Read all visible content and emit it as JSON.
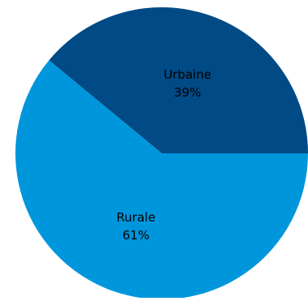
{
  "chart_data": {
    "type": "pie",
    "title": "",
    "categories": [
      "Urbaine",
      "Rurale"
    ],
    "values": [
      39,
      61
    ],
    "value_labels": [
      "39%",
      "61%"
    ],
    "colors": [
      "#004a85",
      "#0096dc"
    ],
    "legend": "none",
    "start_angle_deg": 0,
    "direction": "counterclockwise"
  }
}
